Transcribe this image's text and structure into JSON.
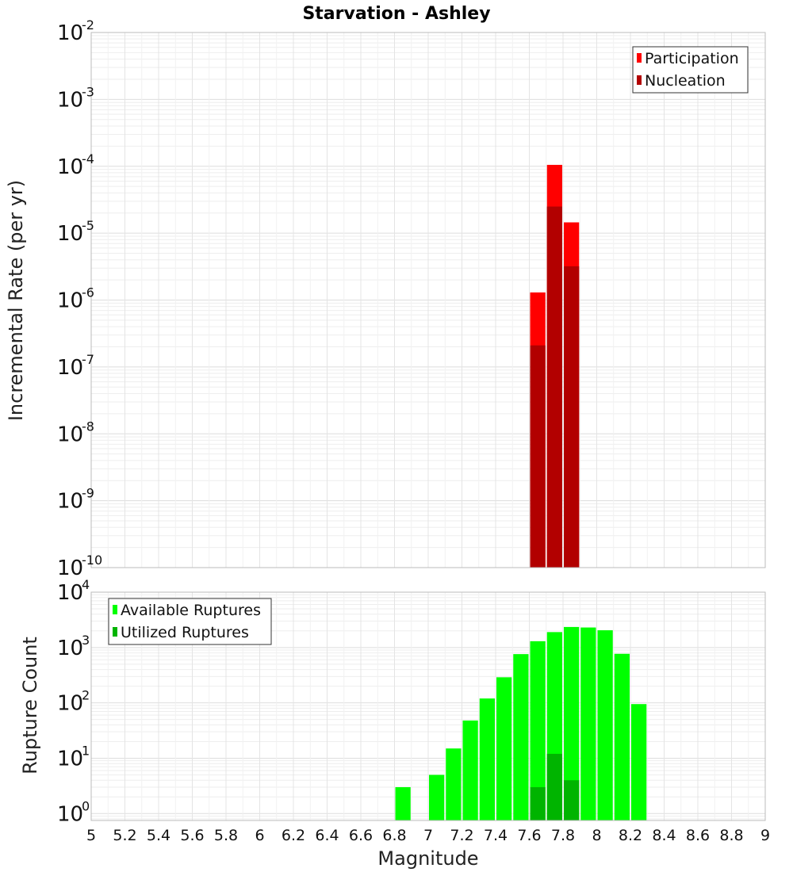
{
  "chart_data": {
    "type": "bar",
    "title": "Starvation - Ashley",
    "xlabel": "Magnitude",
    "xlim": [
      5,
      9
    ],
    "x_ticks": [
      "5",
      "5.2",
      "5.4",
      "5.6",
      "5.8",
      "6",
      "6.2",
      "6.4",
      "6.6",
      "6.8",
      "7",
      "7.2",
      "7.4",
      "7.6",
      "7.8",
      "8",
      "8.2",
      "8.4",
      "8.6",
      "8.8",
      "9"
    ],
    "panels": [
      {
        "id": "rates",
        "ylabel": "Incremental Rate (per yr)",
        "yscale": "log",
        "ylim": [
          1e-10,
          0.01
        ],
        "y_ticks": [
          {
            "base": "10",
            "exp": "-2"
          },
          {
            "base": "10",
            "exp": "-3"
          },
          {
            "base": "10",
            "exp": "-4"
          },
          {
            "base": "10",
            "exp": "-5"
          },
          {
            "base": "10",
            "exp": "-6"
          },
          {
            "base": "10",
            "exp": "-7"
          },
          {
            "base": "10",
            "exp": "-8"
          },
          {
            "base": "10",
            "exp": "-9"
          },
          {
            "base": "10",
            "exp": "-10"
          }
        ],
        "legend": {
          "position": "top-right"
        },
        "bin_width": 0.1,
        "series": [
          {
            "name": "Participation",
            "color": "#ff0000",
            "x": [
              7.65,
              7.75,
              7.85
            ],
            "values": [
              1.3e-06,
              0.000105,
              1.45e-05
            ]
          },
          {
            "name": "Nucleation",
            "color": "#b20000",
            "x": [
              7.65,
              7.75,
              7.85
            ],
            "values": [
              2.1e-07,
              2.5e-05,
              3.2e-06
            ]
          }
        ]
      },
      {
        "id": "counts",
        "ylabel": "Rupture Count",
        "yscale": "log",
        "ylim": [
          0.75,
          10000.0
        ],
        "y_ticks": [
          {
            "base": "10",
            "exp": "4"
          },
          {
            "base": "10",
            "exp": "3"
          },
          {
            "base": "10",
            "exp": "2"
          },
          {
            "base": "10",
            "exp": "1"
          },
          {
            "base": "10",
            "exp": "0"
          }
        ],
        "legend": {
          "position": "top-left"
        },
        "bin_width": 0.1,
        "series": [
          {
            "name": "Available Ruptures",
            "color": "#00ff00",
            "x": [
              6.85,
              7.05,
              7.15,
              7.25,
              7.35,
              7.45,
              7.55,
              7.65,
              7.75,
              7.85,
              7.95,
              8.05,
              8.15,
              8.25
            ],
            "values": [
              3,
              5,
              15,
              48,
              120,
              290,
              760,
              1300,
              1900,
              2350,
              2300,
              2050,
              770,
              95
            ]
          },
          {
            "name": "Utilized Ruptures",
            "color": "#00b400",
            "x": [
              7.65,
              7.75,
              7.85
            ],
            "values": [
              3,
              12,
              4
            ]
          }
        ]
      }
    ]
  }
}
